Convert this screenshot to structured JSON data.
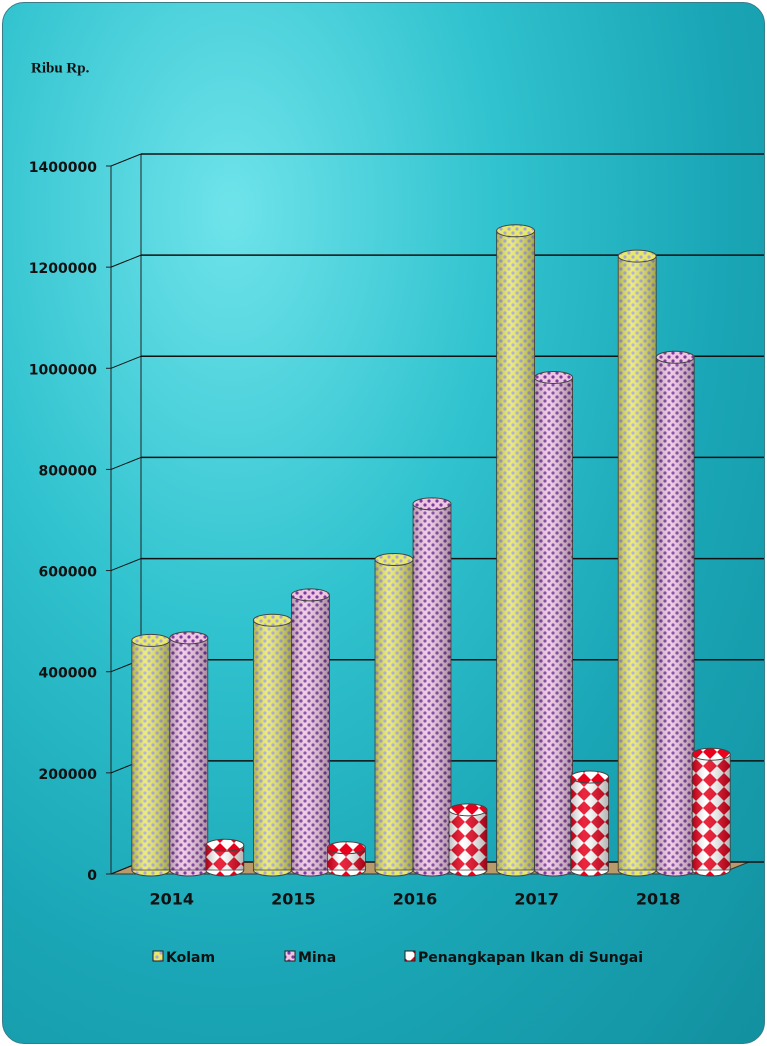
{
  "chart_data": {
    "type": "bar",
    "y_label": "Ribu Rp.",
    "categories": [
      "2014",
      "2015",
      "2016",
      "2017",
      "2018"
    ],
    "series": [
      {
        "name": "Kolam",
        "color": "#e8e86a",
        "values": [
          450000,
          490000,
          610000,
          1260000,
          1210000
        ]
      },
      {
        "name": "Mina",
        "color": "#e7b3d6",
        "values": [
          455000,
          540000,
          720000,
          970000,
          1010000
        ]
      },
      {
        "name": "Penangkapan Ikan di Sungai",
        "color": "#e8001c",
        "values": [
          45000,
          40000,
          115000,
          180000,
          225000
        ]
      }
    ],
    "ylim": [
      0,
      1400000
    ],
    "yticks": [
      0,
      200000,
      400000,
      600000,
      800000,
      1000000,
      1200000,
      1400000
    ],
    "grid": true
  }
}
